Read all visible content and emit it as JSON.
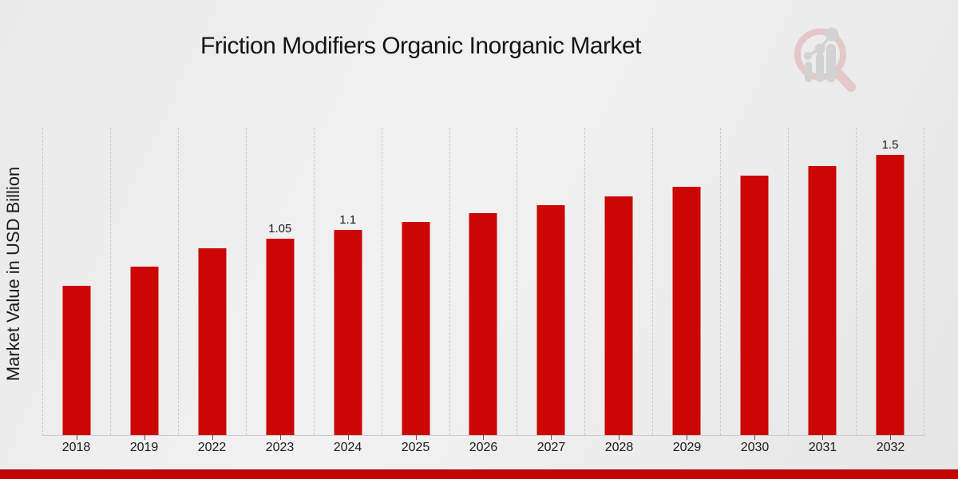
{
  "title": "Friction Modifiers Organic Inorganic Market",
  "y_axis_label": "Market Value in USD Billion",
  "colors": {
    "bar": "#cc0505",
    "bottom_banner": "#c10505",
    "gridline": "#c7c7c7",
    "text": "#1a1a1a",
    "logo_ring": "#e4c7c7",
    "logo_bars": "#d2d2d2"
  },
  "logo": {
    "name": "market-research-future-watermark-logo"
  },
  "chart_data": {
    "type": "bar",
    "title": "Friction Modifiers Organic Inorganic Market",
    "xlabel": "",
    "ylabel": "Market Value in USD Billion",
    "categories": [
      "2018",
      "2019",
      "2022",
      "2023",
      "2024",
      "2025",
      "2026",
      "2027",
      "2028",
      "2029",
      "2030",
      "2031",
      "2032"
    ],
    "values": [
      0.8,
      0.9,
      1.0,
      1.05,
      1.1,
      1.14,
      1.19,
      1.23,
      1.28,
      1.33,
      1.39,
      1.44,
      1.5
    ],
    "data_labels": [
      "",
      "",
      "",
      "1.05",
      "1.1",
      "",
      "",
      "",
      "",
      "",
      "",
      "",
      "1.5"
    ],
    "unit": "USD Billion",
    "ylim": [
      0,
      1.65
    ],
    "grid": "vertical-dashed",
    "legend": "none",
    "bar_color": "#cc0505"
  }
}
